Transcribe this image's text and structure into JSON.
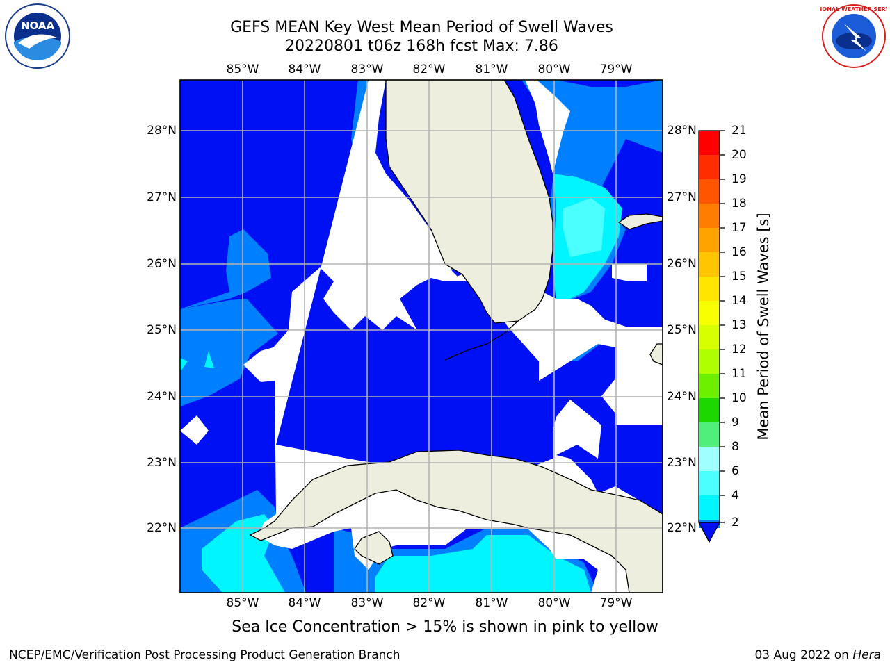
{
  "title": {
    "line1": "GEFS MEAN Key West Mean Period of Swell Waves",
    "line2": "20220801 t06z 168h fcst   Max: 7.86"
  },
  "map": {
    "lon_labels": [
      "85°W",
      "84°W",
      "83°W",
      "82°W",
      "81°W",
      "80°W",
      "79°W"
    ],
    "lat_labels": [
      "28°N",
      "27°N",
      "26°N",
      "25°N",
      "24°N",
      "23°N",
      "22°N"
    ],
    "colors": {
      "ocean_blue": "#0010f5",
      "mid_blue": "#0080ff",
      "cyan": "#00f5ff",
      "light_cyan": "#4cffff",
      "land": "#eeeedf",
      "grid": "#b4b4b4"
    }
  },
  "colorbar": {
    "label": "Mean Period of Swell Waves [s]",
    "ticks": [
      "21",
      "20",
      "19",
      "18",
      "17",
      "16",
      "15",
      "14",
      "13",
      "12",
      "11",
      "10",
      "9",
      "8",
      "6",
      "4",
      "2"
    ],
    "colors": [
      "#ff0000",
      "#ff2d00",
      "#ff5500",
      "#ff7d00",
      "#ffa300",
      "#ffc500",
      "#ffe600",
      "#f7ff00",
      "#d8ff00",
      "#b0ff00",
      "#6cf000",
      "#1cd800",
      "#50ee7a",
      "#a0ffff",
      "#4cffff",
      "#00f5ff",
      "#0080ff"
    ]
  },
  "logos": {
    "noaa_text": "NOAA",
    "nws_text": "NATIONAL WEATHER SERVICE"
  },
  "footer": {
    "note": "Sea Ice Concentration > 15% is shown in pink to yellow",
    "left": "NCEP/EMC/Verification Post Processing Product Generation Branch",
    "right_date": "03 Aug 2022 on",
    "right_host": "Hera"
  }
}
